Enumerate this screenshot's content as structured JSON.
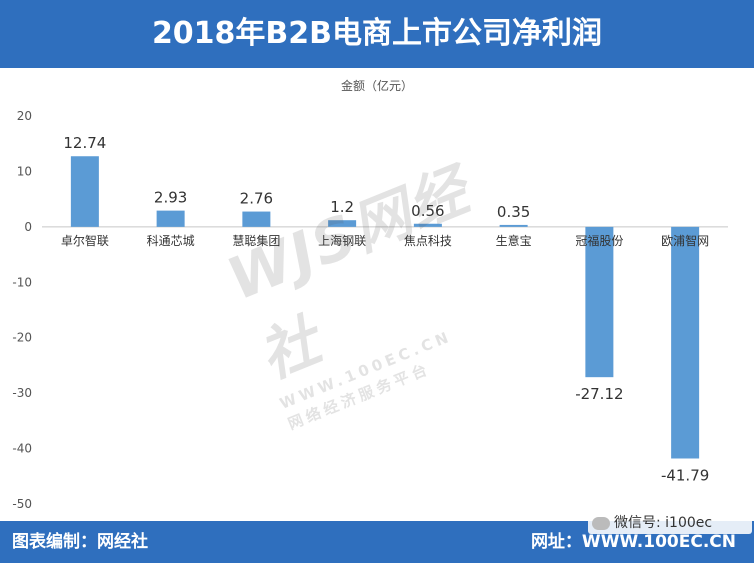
{
  "header": {
    "title": "2018年B2B电商上市公司净利润"
  },
  "footer": {
    "left_text": "图表编制：网经社",
    "right_text": "网址：WWW.100EC.CN"
  },
  "wechat": {
    "label": "微信号: i100ec"
  },
  "watermark": {
    "logo": "WJS网经社",
    "site": "WWW.100EC.CN",
    "slogan": "网络经济服务平台"
  },
  "colors": {
    "header": "#2f6fbe",
    "bar": "#5b9bd5"
  },
  "chart_data": {
    "type": "bar",
    "ylabel": "金额（亿元）",
    "categories": [
      "卓尔智联",
      "科通芯城",
      "慧聪集团",
      "上海钢联",
      "焦点科技",
      "生意宝",
      "冠福股份",
      "欧浦智网"
    ],
    "values": [
      12.74,
      2.93,
      2.76,
      1.2,
      0.56,
      0.35,
      -27.12,
      -41.79
    ],
    "data_labels": [
      "12.74",
      "2.93",
      "2.76",
      "1.2",
      "0.56",
      "0.35",
      "-27.12",
      "-41.79"
    ],
    "ylim": [
      -50,
      20
    ],
    "yticks": [
      20,
      10,
      0,
      -10,
      -20,
      -30,
      -40,
      -50
    ],
    "grid": false,
    "legend": "none"
  }
}
